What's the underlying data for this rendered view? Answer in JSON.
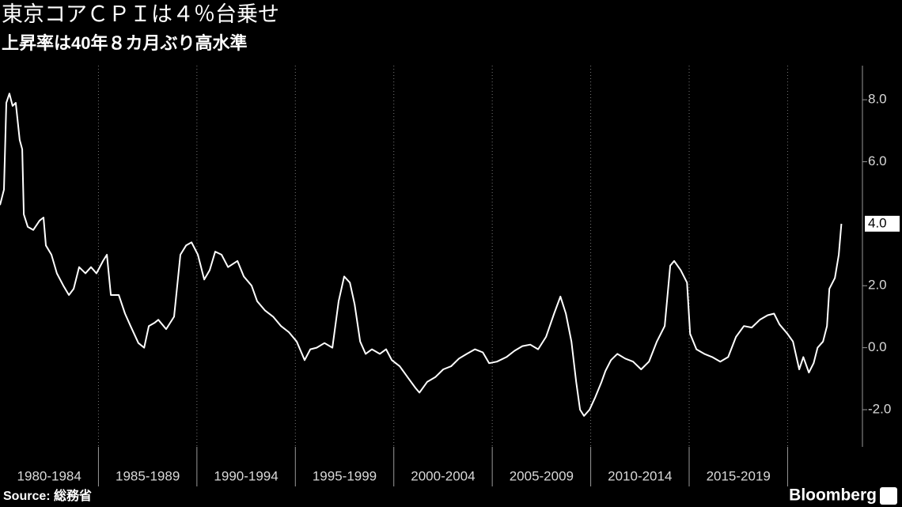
{
  "chart_data": {
    "type": "line",
    "title": "東京コアＣＰＩは４％台乗せ",
    "subtitle": "上昇率は40年８カ月ぶり高水準",
    "source": "Source: 総務省",
    "logo": "Bloomberg",
    "background": "#000000",
    "xlim": [
      1980,
      2023.8
    ],
    "xticks": [
      1985,
      1990,
      1995,
      2000,
      2005,
      2010,
      2015,
      2020
    ],
    "period_labels": [
      "1980-1984",
      "1985-1989",
      "1990-1994",
      "1995-1999",
      "2000-2004",
      "2005-2009",
      "2010-2014",
      "2015-2019"
    ],
    "ylim": [
      -3.2,
      9.1
    ],
    "yticks": [
      {
        "value": -2,
        "label": "-2.0"
      },
      {
        "value": 0,
        "label": "0.0"
      },
      {
        "value": 2,
        "label": "2.0"
      },
      {
        "value": 6,
        "label": "6.0"
      },
      {
        "value": 8,
        "label": "8.0"
      }
    ],
    "series": [
      {
        "color": "#ffffff",
        "last_label": "4.0",
        "x": [
          1980.0,
          1980.2,
          1980.32,
          1980.48,
          1980.64,
          1980.8,
          1981.0,
          1981.13,
          1981.21,
          1981.41,
          1981.69,
          1982.01,
          1982.21,
          1982.33,
          1982.61,
          1982.89,
          1983.22,
          1983.5,
          1983.74,
          1984.02,
          1984.34,
          1984.62,
          1984.9,
          1985.23,
          1985.43,
          1985.63,
          1986.03,
          1986.35,
          1986.63,
          1987.03,
          1987.32,
          1987.56,
          1987.84,
          1988.04,
          1988.44,
          1988.84,
          1989.16,
          1989.45,
          1989.73,
          1990.05,
          1990.37,
          1990.65,
          1990.93,
          1991.25,
          1991.58,
          1992.06,
          1992.38,
          1992.78,
          1993.06,
          1993.46,
          1993.87,
          1994.27,
          1994.67,
          1995.07,
          1995.47,
          1995.76,
          1996.08,
          1996.48,
          1996.88,
          1997.2,
          1997.48,
          1997.77,
          1998.01,
          1998.29,
          1998.57,
          1998.89,
          1999.29,
          1999.61,
          1999.9,
          2000.3,
          2000.7,
          2001.1,
          2001.3,
          2001.7,
          2002.11,
          2002.51,
          2002.91,
          2003.31,
          2003.71,
          2004.12,
          2004.52,
          2004.84,
          2005.24,
          2005.72,
          2006.13,
          2006.53,
          2006.93,
          2007.33,
          2007.73,
          2008.14,
          2008.46,
          2008.74,
          2009.02,
          2009.26,
          2009.46,
          2009.66,
          2009.94,
          2010.23,
          2010.55,
          2010.75,
          2011.03,
          2011.35,
          2011.75,
          2012.15,
          2012.56,
          2012.96,
          2013.36,
          2013.76,
          2014.04,
          2014.24,
          2014.57,
          2014.89,
          2015.05,
          2015.37,
          2015.77,
          2016.17,
          2016.58,
          2016.98,
          2017.38,
          2017.78,
          2018.18,
          2018.59,
          2018.99,
          2019.31,
          2019.59,
          2019.99,
          2020.27,
          2020.59,
          2020.8,
          2021.08,
          2021.32,
          2021.52,
          2021.8,
          2022.0,
          2022.12,
          2022.4,
          2022.6,
          2022.73
        ],
        "values": [
          4.6,
          5.1,
          7.9,
          8.2,
          7.8,
          7.9,
          6.7,
          6.4,
          4.3,
          3.9,
          3.8,
          4.1,
          4.2,
          3.3,
          3.0,
          2.4,
          2.0,
          1.7,
          1.9,
          2.6,
          2.4,
          2.6,
          2.4,
          2.8,
          3.0,
          1.7,
          1.7,
          1.1,
          0.7,
          0.15,
          0.0,
          0.7,
          0.8,
          0.9,
          0.6,
          1.0,
          3.0,
          3.3,
          3.4,
          3.0,
          2.2,
          2.5,
          3.1,
          3.0,
          2.6,
          2.8,
          2.3,
          2.0,
          1.5,
          1.2,
          1.0,
          0.7,
          0.5,
          0.2,
          -0.4,
          -0.05,
          0.0,
          0.15,
          0.0,
          1.5,
          2.3,
          2.1,
          1.4,
          0.2,
          -0.2,
          -0.05,
          -0.2,
          -0.05,
          -0.4,
          -0.6,
          -0.95,
          -1.3,
          -1.45,
          -1.1,
          -0.95,
          -0.7,
          -0.6,
          -0.35,
          -0.2,
          -0.05,
          -0.15,
          -0.5,
          -0.45,
          -0.3,
          -0.1,
          0.05,
          0.1,
          -0.05,
          0.35,
          1.1,
          1.65,
          1.1,
          0.2,
          -1.1,
          -2.0,
          -2.2,
          -2.0,
          -1.6,
          -1.1,
          -0.75,
          -0.4,
          -0.2,
          -0.35,
          -0.45,
          -0.7,
          -0.45,
          0.2,
          0.7,
          2.65,
          2.8,
          2.5,
          2.1,
          0.45,
          -0.05,
          -0.2,
          -0.3,
          -0.45,
          -0.3,
          0.35,
          0.7,
          0.65,
          0.9,
          1.05,
          1.1,
          0.75,
          0.45,
          0.2,
          -0.7,
          -0.3,
          -0.8,
          -0.5,
          0.0,
          0.2,
          0.7,
          1.9,
          2.25,
          3.0,
          4.0
        ]
      }
    ]
  }
}
